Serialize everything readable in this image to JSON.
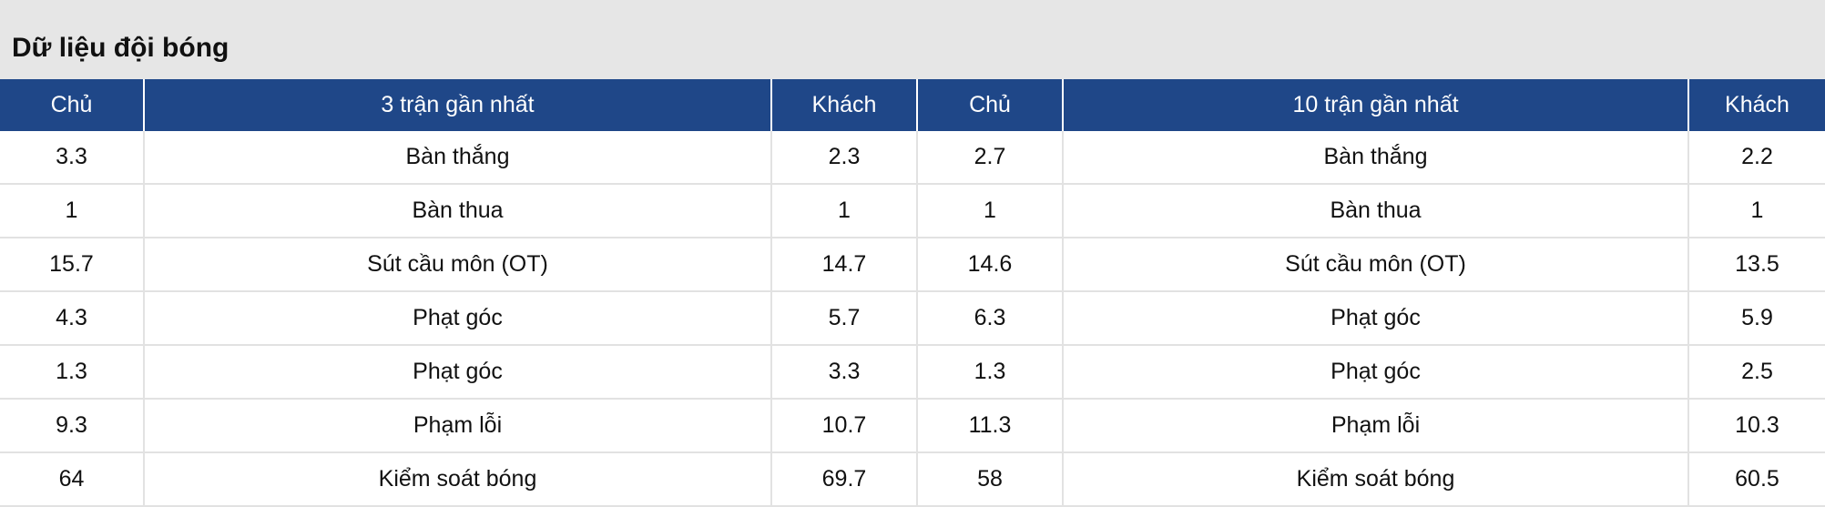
{
  "title": "Dữ liệu đội bóng",
  "headers": [
    "Chủ",
    "3 trận gần nhất",
    "Khách",
    "Chủ",
    "10 trận gần nhất",
    "Khách"
  ],
  "rows": [
    [
      "3.3",
      "Bàn thắng",
      "2.3",
      "2.7",
      "Bàn thắng",
      "2.2"
    ],
    [
      "1",
      "Bàn thua",
      "1",
      "1",
      "Bàn thua",
      "1"
    ],
    [
      "15.7",
      "Sút cầu môn (OT)",
      "14.7",
      "14.6",
      "Sút cầu môn (OT)",
      "13.5"
    ],
    [
      "4.3",
      "Phạt góc",
      "5.7",
      "6.3",
      "Phạt góc",
      "5.9"
    ],
    [
      "1.3",
      "Phạt góc",
      "3.3",
      "1.3",
      "Phạt góc",
      "2.5"
    ],
    [
      "9.3",
      "Phạm lỗi",
      "10.7",
      "11.3",
      "Phạm lỗi",
      "10.3"
    ],
    [
      "64",
      "Kiểm soát bóng",
      "69.7",
      "58",
      "Kiểm soát bóng",
      "60.5"
    ]
  ],
  "colors": {
    "header_bg": "#1f4788",
    "title_bg": "#e6e6e6"
  }
}
